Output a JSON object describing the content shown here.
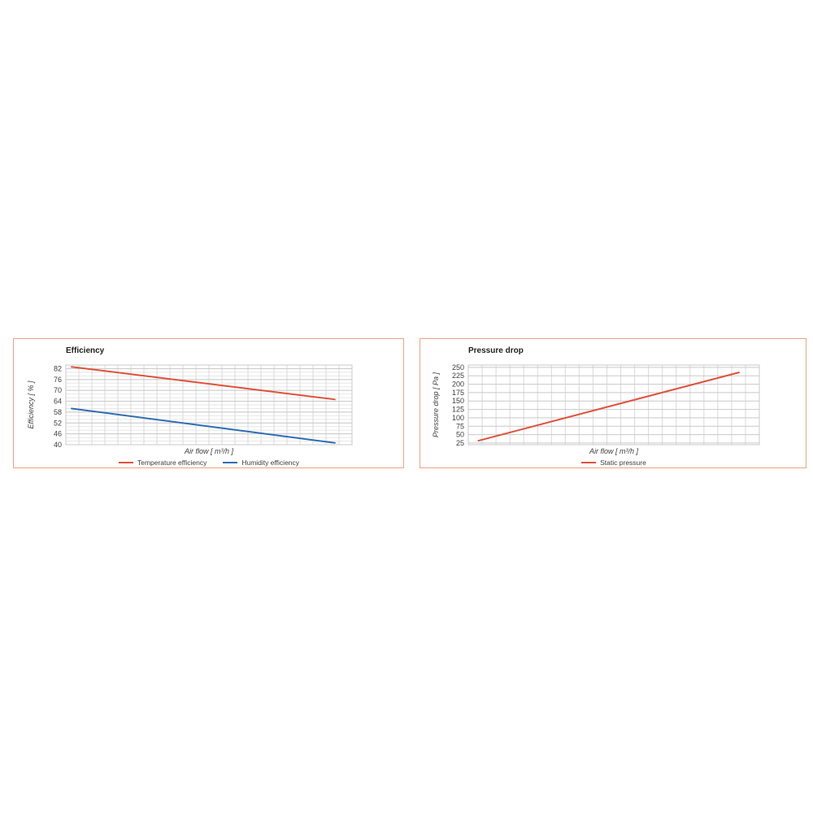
{
  "colors": {
    "panel_border": "#efa184",
    "grid_major": "#c9c9c9",
    "grid_minor": "#e7e7e7",
    "grid_vertical": "#d9d9d9",
    "text": "#3d3d3d",
    "title": "#1f1f1f",
    "accent_red": "#e0513a",
    "accent_blue": "#2e6db4"
  },
  "chart_data": [
    {
      "type": "line",
      "title": "Efficiency",
      "xlabel": "Air flow [ m³/h ]",
      "ylabel": "Efficiency [ % ]",
      "ylim": [
        40,
        84
      ],
      "yticks": [
        82,
        76,
        70,
        64,
        58,
        52,
        46,
        40
      ],
      "y_minor_step": 2,
      "x_divisions": 22,
      "x_tick_labels": [],
      "grid": true,
      "legend_position": "bottom",
      "series": [
        {
          "name": "Temperature efficiency",
          "color": "#e0513a",
          "points": [
            {
              "x_frac": 0.02,
              "y": 83
            },
            {
              "x_frac": 0.94,
              "y": 65
            }
          ]
        },
        {
          "name": "Humidity efficiency",
          "color": "#2e6db4",
          "points": [
            {
              "x_frac": 0.02,
              "y": 60
            },
            {
              "x_frac": 0.94,
              "y": 41
            }
          ]
        }
      ]
    },
    {
      "type": "line",
      "title": "Pressure drop",
      "xlabel": "Air flow [ m³/h ]",
      "ylabel": "Pressure drop [ Pa ]",
      "ylim": [
        20,
        257
      ],
      "yticks": [
        250,
        225,
        200,
        175,
        150,
        125,
        100,
        75,
        50,
        25
      ],
      "y_minor_step": null,
      "x_divisions": 21,
      "x_tick_labels": [],
      "grid": true,
      "legend_position": "bottom",
      "series": [
        {
          "name": "Static pressure",
          "color": "#e0513a",
          "points": [
            {
              "x_frac": 0.035,
              "y": 32
            },
            {
              "x_frac": 0.93,
              "y": 235
            }
          ]
        }
      ]
    }
  ]
}
